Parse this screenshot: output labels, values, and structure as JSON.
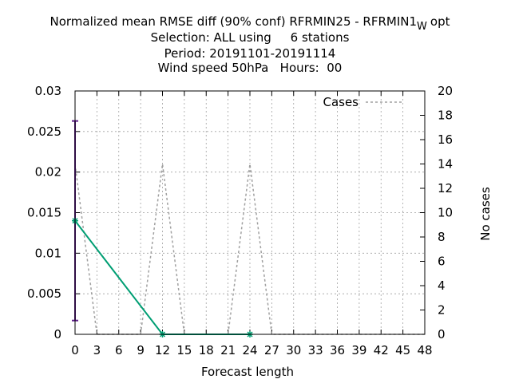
{
  "chart_data": {
    "type": "line",
    "title_lines": [
      "Normalized mean RMSE diff (90% conf) RFRMIN25 - RFRMIN1",
      "Selection: ALL using     6 stations",
      "Period: 20191101-20191114",
      "Wind speed 50hPa   Hours:  00"
    ],
    "title_subscript": "W",
    "title_suffix": "opt",
    "xlabel": "Forecast length",
    "ylabel": "",
    "y2label": "No cases",
    "xlim": [
      0,
      48
    ],
    "ylim": [
      0,
      0.03
    ],
    "y2lim": [
      0,
      20
    ],
    "x_ticks": [
      0,
      3,
      6,
      9,
      12,
      15,
      18,
      21,
      24,
      27,
      30,
      33,
      36,
      39,
      42,
      45,
      48
    ],
    "y_ticks": [
      "0",
      "0.005",
      "0.01",
      "0.015",
      "0.02",
      "0.025",
      "0.03"
    ],
    "y_tick_values": [
      0,
      0.005,
      0.01,
      0.015,
      0.02,
      0.025,
      0.03
    ],
    "y2_ticks": [
      0,
      2,
      4,
      6,
      8,
      10,
      12,
      14,
      16,
      18,
      20
    ],
    "grid": true,
    "legend_position": "top-right",
    "series": [
      {
        "name": "",
        "kind": "diff",
        "color": "#009e73",
        "axis": "y",
        "x": [
          0,
          12,
          24
        ],
        "values": [
          0.014,
          0,
          0
        ]
      },
      {
        "name": "Cases",
        "kind": "cases",
        "color": "#a0a0a0",
        "axis": "y2",
        "x": [
          0,
          3,
          9,
          12,
          15,
          21,
          24,
          27,
          48
        ],
        "values": [
          14,
          0,
          0,
          14,
          0,
          0,
          14,
          0,
          0
        ]
      }
    ],
    "error_bar": {
      "color": "#5e1d8a",
      "x": 0,
      "low": 0.0017,
      "high": 0.0263
    }
  }
}
